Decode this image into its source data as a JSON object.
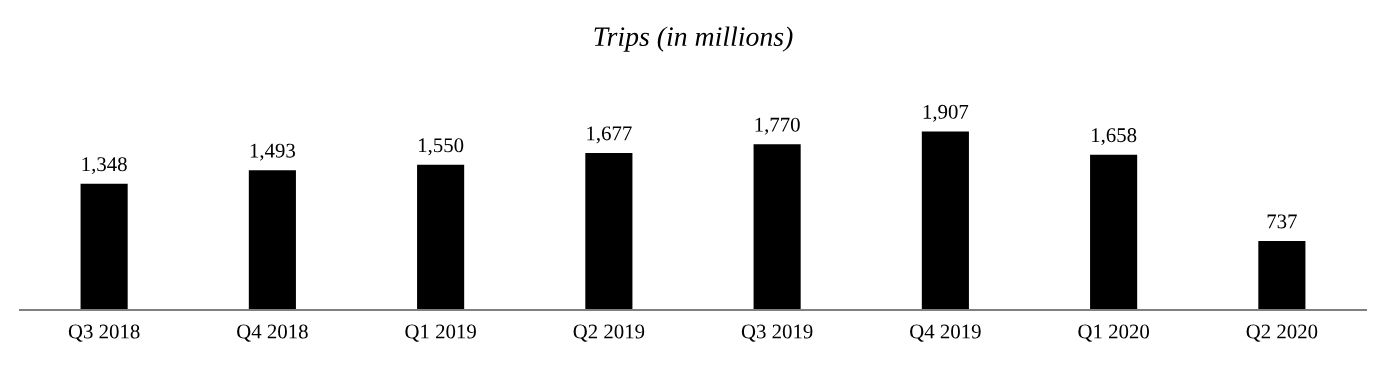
{
  "chart_data": {
    "type": "bar",
    "title": "Trips (in millions)",
    "categories": [
      "Q3 2018",
      "Q4 2018",
      "Q1 2019",
      "Q2 2019",
      "Q3 2019",
      "Q4 2019",
      "Q1 2020",
      "Q2 2020"
    ],
    "values": [
      1348,
      1493,
      1550,
      1677,
      1770,
      1907,
      1658,
      737
    ],
    "value_labels": [
      "1,348",
      "1,493",
      "1,550",
      "1,677",
      "1,770",
      "1,907",
      "1,658",
      "737"
    ],
    "color": "#000000",
    "grid": false,
    "legend": false
  }
}
